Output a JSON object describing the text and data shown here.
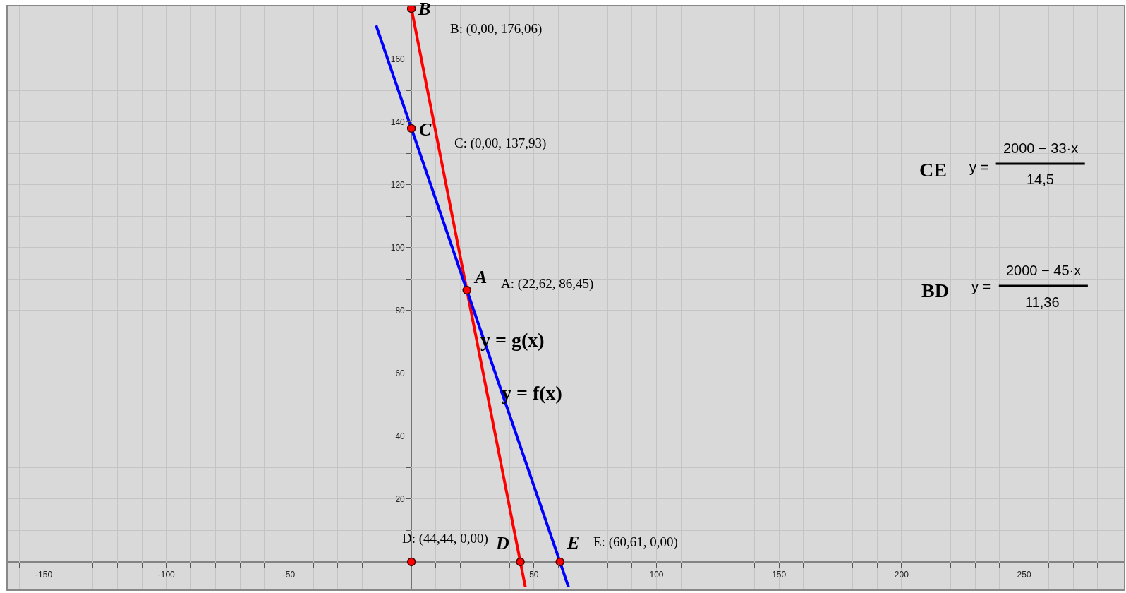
{
  "chart_data": {
    "type": "line",
    "xlim": [
      -165,
      291
    ],
    "ylim": [
      -9,
      177
    ],
    "xticks": [
      {
        "value": -160,
        "label": null
      },
      {
        "value": -150,
        "label": "-150"
      },
      {
        "value": -140,
        "label": null
      },
      {
        "value": -130,
        "label": null
      },
      {
        "value": -120,
        "label": null
      },
      {
        "value": -110,
        "label": null
      },
      {
        "value": -100,
        "label": "-100"
      },
      {
        "value": -90,
        "label": null
      },
      {
        "value": -80,
        "label": null
      },
      {
        "value": -70,
        "label": null
      },
      {
        "value": -60,
        "label": null
      },
      {
        "value": -50,
        "label": "-50"
      },
      {
        "value": -40,
        "label": null
      },
      {
        "value": -30,
        "label": null
      },
      {
        "value": -20,
        "label": null
      },
      {
        "value": -10,
        "label": null
      },
      {
        "value": 10,
        "label": null
      },
      {
        "value": 20,
        "label": null
      },
      {
        "value": 30,
        "label": null
      },
      {
        "value": 40,
        "label": null
      },
      50,
      {
        "value": 60,
        "label": null
      },
      {
        "value": 70,
        "label": null
      },
      {
        "value": 80,
        "label": null
      },
      {
        "value": 90,
        "label": null
      },
      100,
      {
        "value": 110,
        "label": null
      },
      {
        "value": 120,
        "label": null
      },
      {
        "value": 130,
        "label": null
      },
      {
        "value": 140,
        "label": null
      },
      150,
      {
        "value": 160,
        "label": null
      },
      {
        "value": 170,
        "label": null
      },
      {
        "value": 180,
        "label": null
      },
      {
        "value": 190,
        "label": null
      },
      200,
      {
        "value": 210,
        "label": null
      },
      {
        "value": 220,
        "label": null
      },
      {
        "value": 230,
        "label": null
      },
      {
        "value": 240,
        "label": null
      },
      250,
      {
        "value": 260,
        "label": null
      },
      {
        "value": 270,
        "label": null
      },
      {
        "value": 280,
        "label": null
      },
      {
        "value": 290,
        "label": null
      }
    ],
    "yticks": [
      {
        "value": 10,
        "label": null
      },
      20,
      {
        "value": 30,
        "label": null
      },
      40,
      {
        "value": 50,
        "label": null
      },
      60,
      {
        "value": 70,
        "label": null
      },
      80,
      {
        "value": 90,
        "label": null
      },
      100,
      {
        "value": 110,
        "label": null
      },
      120,
      {
        "value": 130,
        "label": null
      },
      140,
      {
        "value": 150,
        "label": null
      },
      160,
      {
        "value": 170,
        "label": null
      }
    ],
    "grid": true,
    "legend": false,
    "line_style": "solid",
    "series": [
      {
        "color": "#ff0000",
        "marker": "none",
        "x": [
          0,
          22.62,
          44.44,
          46.5
        ],
        "values": [
          176.06,
          86.45,
          0,
          -8
        ]
      },
      {
        "color": "#0000ff",
        "marker": "none",
        "x": [
          -14.4,
          0,
          22.62,
          60.61,
          64.1
        ],
        "values": [
          170.7,
          137.93,
          86.45,
          0,
          -8
        ]
      },
      {
        "type": "scatter",
        "color": "#ff0000",
        "marker": "circle",
        "x": [
          0,
          0,
          22.62,
          44.44,
          60.61,
          0
        ],
        "values": [
          176.06,
          137.93,
          86.45,
          0,
          0,
          0
        ]
      }
    ],
    "annotations": [
      "B",
      "B: (0,00, 176,06)",
      "C",
      "C: (0,00, 137,93)",
      "A",
      "A: (22,62, 86,45)",
      "D",
      "D: (44,44, 0,00)",
      "E",
      "E: (60,61, 0,00)",
      "y = g(x)",
      "y = f(x)",
      "CE",
      "y =",
      "2000 − 33·x",
      "14,5",
      "BD",
      "y =",
      "2000 − 45·x",
      "11,36"
    ]
  }
}
